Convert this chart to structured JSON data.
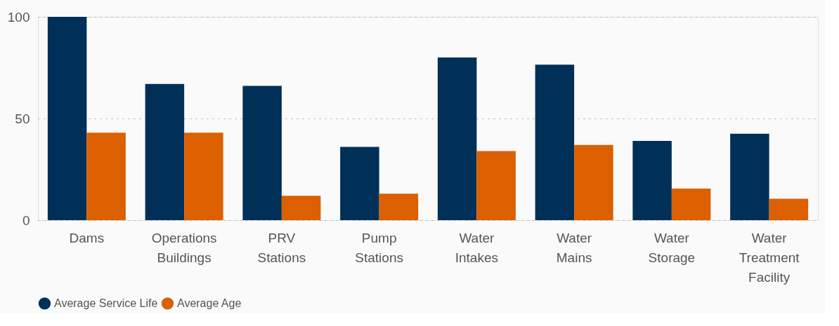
{
  "chart_data": {
    "type": "bar",
    "categories": [
      "Dams",
      "Operations Buildings",
      "PRV Stations",
      "Pump Stations",
      "Water Intakes",
      "Water Mains",
      "Water Storage",
      "Water Treatment Facility"
    ],
    "series": [
      {
        "name": "Average Service Life",
        "color": "#003057",
        "values": [
          100,
          67,
          66,
          36,
          80,
          76.5,
          39,
          42.5
        ]
      },
      {
        "name": "Average Age",
        "color": "#dc5f00",
        "values": [
          43,
          43,
          12,
          13,
          34,
          37,
          15.5,
          10.5
        ]
      }
    ],
    "ylim": [
      0,
      100
    ],
    "yticks": [
      0,
      50,
      100
    ],
    "grid": "y",
    "legend": "bottom"
  }
}
